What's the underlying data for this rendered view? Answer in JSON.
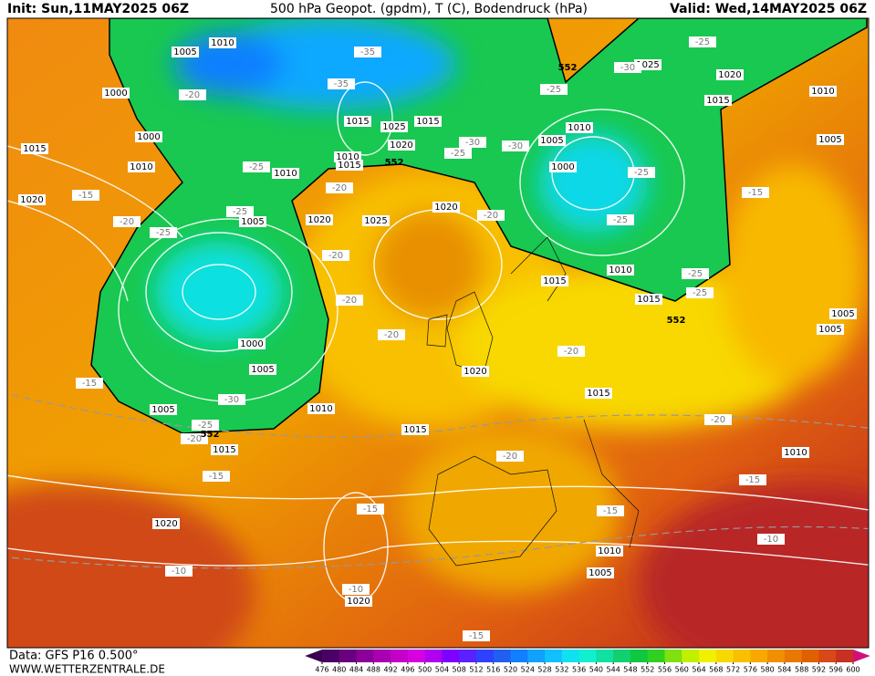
{
  "header": {
    "init": "Init: Sun,11MAY2025 06Z",
    "title": "500 hPa Geopot. (gpdm), T (C), Bodendruck (hPa)",
    "valid": "Valid: Wed,14MAY2025 06Z"
  },
  "footer": {
    "data": "Data: GFS P16 0.500°",
    "site": "WWW.WETTERZENTRALE.DE"
  },
  "map": {
    "pressure_labels": [
      1010,
      1005,
      1000,
      1000,
      1015,
      1010,
      1020,
      1010,
      1005,
      1020,
      1025,
      1015,
      1025,
      1015,
      1010,
      1020,
      1015,
      1020,
      1005,
      1000,
      1010,
      1025,
      1020,
      1015,
      1010,
      1005,
      1010,
      1015,
      1015,
      1005,
      1005,
      1000,
      1005,
      1005,
      1010,
      1020,
      1015,
      1015,
      1015,
      1010,
      1020,
      1010,
      1005,
      1020
    ],
    "geopotential_labels": [
      552,
      552,
      552,
      552
    ],
    "temperature_labels": [
      -35,
      -35,
      -20,
      -25,
      -30,
      -30,
      -25,
      -25,
      -25,
      -30,
      -25,
      -15,
      -25,
      -25,
      -25,
      -20,
      -20,
      -25,
      -15,
      -20,
      -25,
      -20,
      -20,
      -20,
      -20,
      -15,
      -30,
      -25,
      -20,
      -20,
      -20,
      -15,
      -15,
      -15,
      -15,
      -10,
      -10,
      -10,
      -15
    ]
  },
  "colorbar": {
    "ticks": [
      476,
      480,
      484,
      488,
      492,
      496,
      500,
      504,
      508,
      512,
      516,
      520,
      524,
      528,
      532,
      536,
      540,
      544,
      548,
      552,
      556,
      560,
      564,
      568,
      572,
      576,
      580,
      584,
      588,
      592,
      596,
      600
    ],
    "colors": [
      "#3a0050",
      "#4b0066",
      "#6a0080",
      "#8a0099",
      "#a800b0",
      "#c400c8",
      "#d800e0",
      "#b000f0",
      "#8000ff",
      "#5a20ff",
      "#3040ff",
      "#2060f0",
      "#1080ff",
      "#10a0ff",
      "#10c0ff",
      "#10e0f0",
      "#10f0d0",
      "#10e0a0",
      "#10d070",
      "#10c840",
      "#30d020",
      "#80e010",
      "#c0f000",
      "#f0f000",
      "#f8d800",
      "#f8c000",
      "#f8a800",
      "#f09000",
      "#e87800",
      "#e06000",
      "#d84818",
      "#c83020",
      "#d0107a"
    ]
  }
}
